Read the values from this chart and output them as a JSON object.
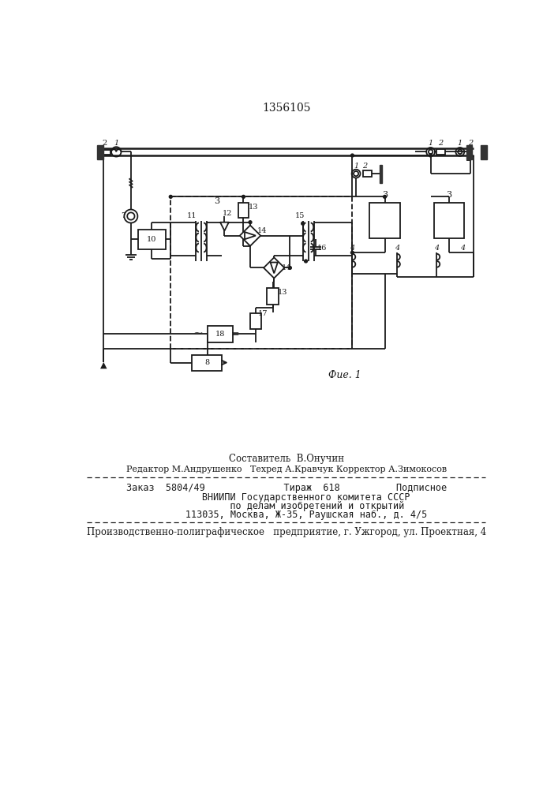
{
  "title": "1356105",
  "fig_caption": "Фие. 1",
  "line_color": "#1a1a1a",
  "footer_line1": "Составитель  В.Онучин",
  "footer_line2": "Редактор М.Андрушенко   Техред А.Кравчук Корректор А.Зимокосов",
  "footer_line3": "Заказ  5804/49              Тираж  618          Подписное",
  "footer_line4": "       ВНИИПИ Государственного комитета СССР",
  "footer_line5": "           по делам изобретений и открытий",
  "footer_line6": "       113035, Москва, Ж-35, Раушская наб., д. 4/5",
  "footer_line7": "Производственно-полиграфическое   предприятие, г. Ужгород, ул. Проектная, 4"
}
